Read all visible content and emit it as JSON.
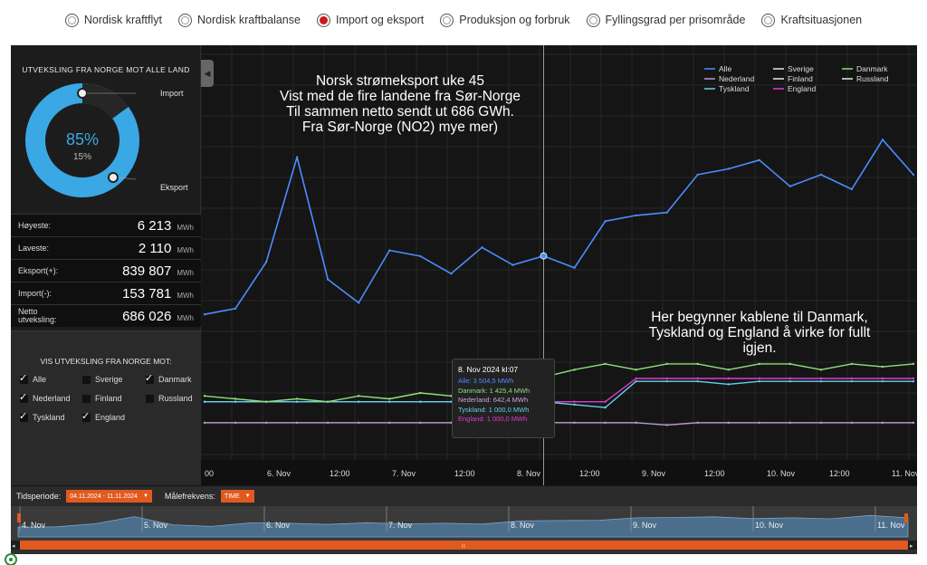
{
  "tabs": [
    {
      "label": "Nordisk kraftflyt",
      "active": false
    },
    {
      "label": "Nordisk kraftbalanse",
      "active": false
    },
    {
      "label": "Import og eksport",
      "active": true
    },
    {
      "label": "Produksjon og forbruk",
      "active": false
    },
    {
      "label": "Fyllingsgrad per prisområde",
      "active": false
    },
    {
      "label": "Kraftsituasjonen",
      "active": false
    }
  ],
  "donut": {
    "title": "UTVEKSLING FRA NORGE MOT ALLE LAND",
    "export_pct": "85%",
    "import_pct": "15%",
    "import_label": "Import",
    "export_label": "Eksport",
    "export_color": "#3aa8e4",
    "import_color": "#2a2a2a"
  },
  "stats": [
    {
      "label": "Høyeste:",
      "value": "6 213",
      "unit": "MWh"
    },
    {
      "label": "Laveste:",
      "value": "2 110",
      "unit": "MWh"
    },
    {
      "label": "Eksport(+):",
      "value": "839 807",
      "unit": "MWh"
    },
    {
      "label": "Import(-):",
      "value": "153 781",
      "unit": "MWh"
    },
    {
      "label": "Netto utveksling:",
      "value": "686 026",
      "unit": "MWh"
    }
  ],
  "vis": {
    "title": "VIS UTVEKSLING FRA NORGE MOT:",
    "options": [
      {
        "label": "Alle",
        "checked": true
      },
      {
        "label": "Sverige",
        "checked": false
      },
      {
        "label": "Danmark",
        "checked": true
      },
      {
        "label": "Nederland",
        "checked": true
      },
      {
        "label": "Finland",
        "checked": false
      },
      {
        "label": "Russland",
        "checked": false
      },
      {
        "label": "Tyskland",
        "checked": true
      },
      {
        "label": "England",
        "checked": true
      }
    ]
  },
  "annotations": {
    "top_text": [
      "Norsk strømeksport uke 45",
      "Vist med de fire landene fra Sør-Norge",
      "Til sammen netto sendt ut 686 GWh.",
      "Fra Sør-Norge (NO2) mye mer)"
    ],
    "right_text": [
      "Her begynner kablene til Danmark,",
      "Tyskland og England å virke for fullt",
      "igjen."
    ]
  },
  "tooltip": {
    "title": "8. Nov 2024 kl:07",
    "rows": [
      {
        "text": "Alle: 3 504,5 MWh",
        "color": "#4c8dff"
      },
      {
        "text": "Danmark: 1 425,4 MWh",
        "color": "#8fe07a"
      },
      {
        "text": "Nederland: 642,4 MWh",
        "color": "#c3a6e0"
      },
      {
        "text": "Tyskland: 1 000,0 MWh",
        "color": "#5fd4ea"
      },
      {
        "text": "England: 1 000,0 MWh",
        "color": "#e23ad1"
      }
    ]
  },
  "legend": [
    {
      "name": "Alle",
      "color": "#4c8dff"
    },
    {
      "name": "Sverige",
      "color": "#e8e8e8"
    },
    {
      "name": "Danmark",
      "color": "#8fe07a"
    },
    {
      "name": "Nederland",
      "color": "#b99ad8"
    },
    {
      "name": "Finland",
      "color": "#e8e8e8"
    },
    {
      "name": "Russland",
      "color": "#e8e8e8"
    },
    {
      "name": "Tyskland",
      "color": "#5fd4ea"
    },
    {
      "name": "England",
      "color": "#e23ad1"
    }
  ],
  "x_ticks": [
    "00",
    "6. Nov",
    "12:00",
    "7. Nov",
    "12:00",
    "8. Nov",
    "12:00",
    "9. Nov",
    "12:00",
    "10. Nov",
    "12:00",
    "11. Nov"
  ],
  "chart_data": {
    "type": "line",
    "x": [
      "05.11 22:00",
      "06.11 00:00",
      "06.11 06:00",
      "06.11 12:00",
      "06.11 18:00",
      "07.11 00:00",
      "07.11 06:00",
      "07.11 12:00",
      "07.11 18:00",
      "08.11 00:00",
      "08.11 06:00",
      "08.11 07:00",
      "08.11 12:00",
      "08.11 18:00",
      "09.11 00:00",
      "09.11 06:00",
      "09.11 12:00",
      "09.11 18:00",
      "10.11 00:00",
      "10.11 06:00",
      "10.11 12:00",
      "10.11 18:00",
      "11.11 00:00",
      "11.11 06:00"
    ],
    "series": [
      {
        "name": "Alle",
        "values": [
          2500,
          2600,
          3400,
          5200,
          3100,
          2700,
          3600,
          3500,
          3200,
          3650,
          3350,
          3504,
          3300,
          4100,
          4200,
          4250,
          4900,
          5000,
          5150,
          4700,
          4900,
          4650,
          5500,
          4900
        ]
      },
      {
        "name": "Danmark",
        "values": [
          1100,
          1050,
          1000,
          1050,
          1000,
          1100,
          1050,
          1150,
          1100,
          1050,
          1150,
          1425,
          1550,
          1650,
          1550,
          1650,
          1650,
          1550,
          1650,
          1650,
          1550,
          1650,
          1600,
          1650
        ]
      },
      {
        "name": "Nederland",
        "values": [
          640,
          640,
          640,
          640,
          640,
          640,
          640,
          640,
          640,
          640,
          640,
          642,
          640,
          640,
          640,
          600,
          640,
          640,
          640,
          640,
          640,
          640,
          640,
          640
        ]
      },
      {
        "name": "Tyskland",
        "values": [
          1000,
          1000,
          1000,
          1000,
          1000,
          1000,
          1000,
          1000,
          1000,
          1000,
          1000,
          1000,
          950,
          900,
          1350,
          1350,
          1350,
          1300,
          1350,
          1350,
          1350,
          1350,
          1350,
          1350
        ]
      },
      {
        "name": "England",
        "values": [
          1000,
          1000,
          1000,
          1000,
          1000,
          1000,
          1000,
          1000,
          1000,
          1000,
          1000,
          1000,
          1000,
          1000,
          1400,
          1400,
          1400,
          1400,
          1400,
          1400,
          1400,
          1400,
          1400,
          1400
        ]
      }
    ],
    "ylim": [
      0,
      6500
    ],
    "grid": true,
    "legend_position": "top-right"
  },
  "controls": {
    "period_label": "Tidsperiode:",
    "period_value": "04.11.2024 - 11.11.2024",
    "freq_label": "Målefrekvens:",
    "freq_value": "TIME"
  },
  "navigator": {
    "labels": [
      "4. Nov",
      "5. Nov",
      "6. Nov",
      "7. Nov",
      "8. Nov",
      "9. Nov",
      "10. Nov",
      "11. Nov"
    ],
    "scroll_handle": "III"
  }
}
